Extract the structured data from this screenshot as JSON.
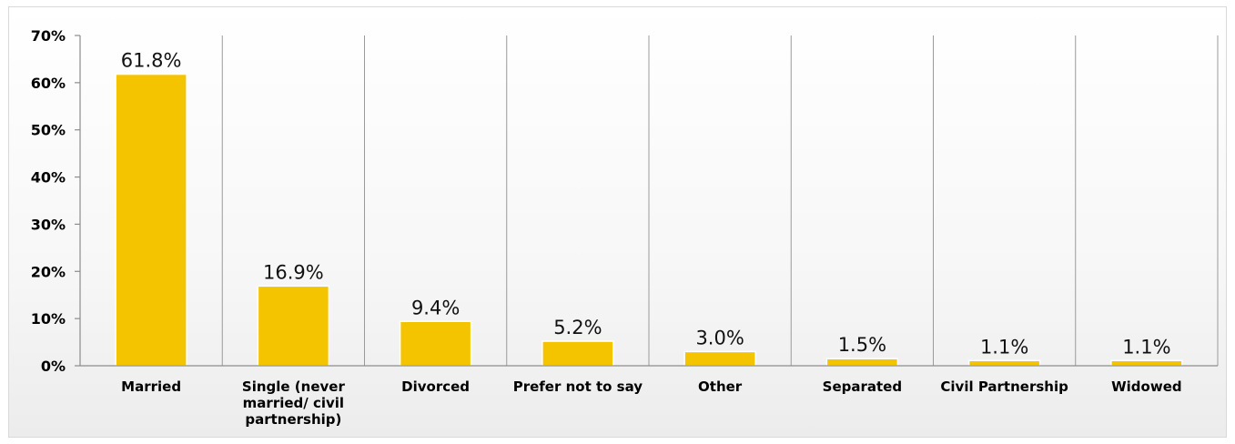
{
  "chart_data": {
    "type": "bar",
    "title": "",
    "xlabel": "",
    "ylabel": "",
    "ylim": [
      0,
      70
    ],
    "yticks": [
      0,
      10,
      20,
      30,
      40,
      50,
      60,
      70
    ],
    "ytick_labels": [
      "0%",
      "10%",
      "20%",
      "30%",
      "40%",
      "50%",
      "60%",
      "70%"
    ],
    "categories": [
      "Married",
      "Single (never married/ civil partnership)",
      "Divorced",
      "Prefer not to say",
      "Other",
      "Separated",
      "Civil Partnership",
      "Widowed"
    ],
    "category_lines": [
      [
        "Married"
      ],
      [
        "Single (never",
        "married/ civil",
        "partnership)"
      ],
      [
        "Divorced"
      ],
      [
        "Prefer not to say"
      ],
      [
        "Other"
      ],
      [
        "Separated"
      ],
      [
        "Civil Partnership"
      ],
      [
        "Widowed"
      ]
    ],
    "values": [
      61.8,
      16.9,
      9.4,
      5.2,
      3.0,
      1.5,
      1.1,
      1.1
    ],
    "data_labels": [
      "61.8%",
      "16.9%",
      "9.4%",
      "5.2%",
      "3.0%",
      "1.5%",
      "1.1%",
      "1.1%"
    ],
    "bar_color": "#f5c400",
    "bar_edge_color": "#ffffff",
    "grid": {
      "vertical": true,
      "horizontal": false,
      "color": "#9a9a9a"
    },
    "legend": "none"
  }
}
